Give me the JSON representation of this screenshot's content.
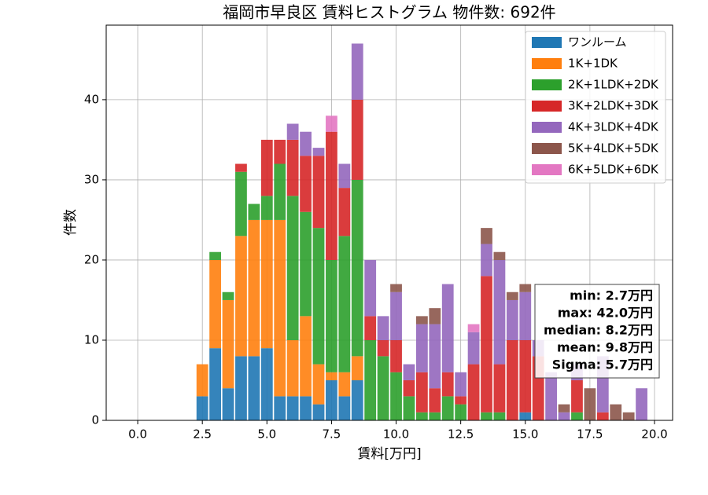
{
  "chart_data": {
    "type": "histogram",
    "title": "福岡市早良区 賃料ヒストグラム  物件数: 692件",
    "x_label": "賃料[万円]",
    "y_label": "件数",
    "bins": [
      2.25,
      2.75,
      3.25,
      3.75,
      4.25,
      4.75,
      5.25,
      5.75,
      6.25,
      6.75,
      7.25,
      7.75,
      8.25,
      8.75,
      9.25,
      9.75,
      10.25,
      10.75,
      11.25,
      11.75,
      12.25,
      12.75,
      13.25,
      13.75,
      14.25,
      14.75,
      15.25,
      15.75,
      16.25,
      16.75,
      17.25,
      17.75,
      18.25,
      18.75,
      19.25,
      19.75
    ],
    "series": [
      {
        "name": "ワンルーム",
        "color": "#1f77b4",
        "values": [
          3,
          9,
          4,
          8,
          8,
          9,
          3,
          3,
          3,
          2,
          5,
          3,
          5,
          0,
          0,
          0,
          0,
          0,
          0,
          0,
          0,
          0,
          0,
          0,
          0,
          1,
          0,
          0,
          0,
          0,
          0,
          0,
          0,
          0,
          0
        ]
      },
      {
        "name": "1K+1DK",
        "color": "#ff7f0e",
        "values": [
          4,
          11,
          11,
          15,
          17,
          16,
          22,
          7,
          10,
          5,
          1,
          3,
          3,
          0,
          0,
          0,
          0,
          0,
          0,
          0,
          0,
          0,
          0,
          0,
          0,
          0,
          0,
          0,
          0,
          0,
          0,
          0,
          0,
          0,
          0
        ]
      },
      {
        "name": "2K+1LDK+2DK",
        "color": "#2ca02c",
        "values": [
          0,
          1,
          1,
          8,
          2,
          3,
          7,
          18,
          13,
          17,
          14,
          17,
          22,
          10,
          8,
          6,
          3,
          1,
          1,
          3,
          2,
          0,
          1,
          1,
          0,
          0,
          0,
          0,
          0,
          1,
          0,
          0,
          0,
          0,
          0
        ]
      },
      {
        "name": "3K+2LDK+3DK",
        "color": "#d62728",
        "values": [
          0,
          0,
          0,
          1,
          0,
          7,
          3,
          7,
          7,
          9,
          16,
          6,
          10,
          3,
          2,
          4,
          2,
          5,
          3,
          3,
          1,
          7,
          17,
          6,
          10,
          9,
          8,
          0,
          0,
          4,
          0,
          1,
          0,
          0,
          0
        ]
      },
      {
        "name": "4K+3LDK+4DK",
        "color": "#9467bd",
        "values": [
          0,
          0,
          0,
          0,
          0,
          0,
          0,
          2,
          3,
          1,
          0,
          3,
          7,
          7,
          3,
          6,
          2,
          6,
          8,
          11,
          3,
          4,
          4,
          13,
          5,
          6,
          2,
          6,
          1,
          2,
          0,
          7,
          0,
          0,
          4
        ]
      },
      {
        "name": "5K+4LDK+5DK",
        "color": "#8c564b",
        "values": [
          0,
          0,
          0,
          0,
          0,
          0,
          0,
          0,
          0,
          0,
          0,
          0,
          0,
          0,
          0,
          1,
          0,
          1,
          2,
          0,
          0,
          0,
          2,
          1,
          1,
          1,
          0,
          0,
          1,
          0,
          4,
          0,
          2,
          1,
          0
        ]
      },
      {
        "name": "6K+5LDK+6DK",
        "color": "#e377c2",
        "values": [
          0,
          0,
          0,
          0,
          0,
          0,
          0,
          0,
          0,
          0,
          2,
          0,
          0,
          0,
          0,
          0,
          0,
          0,
          0,
          0,
          0,
          1,
          0,
          0,
          0,
          0,
          0,
          0,
          0,
          0,
          0,
          0,
          0,
          0,
          0
        ]
      }
    ],
    "xlim": [
      -1.22,
      20.7
    ],
    "ylim": [
      0,
      49.3
    ],
    "xticks": [
      {
        "value": 0,
        "label": "0.0"
      },
      2.5,
      {
        "value": 5,
        "label": "5.0"
      },
      7.5,
      {
        "value": 10,
        "label": "10.0"
      },
      12.5,
      {
        "value": 15,
        "label": "15.0"
      },
      17.5,
      {
        "value": 20,
        "label": "20.0"
      }
    ],
    "yticks": [
      0,
      10,
      20,
      30,
      40
    ],
    "grid": true,
    "legend": "upper right",
    "annotations": [
      "min: 2.7万円",
      "max: 42.0万円",
      "median: 8.2万円",
      "mean: 9.8万円",
      "Sigma: 5.7万円"
    ]
  }
}
